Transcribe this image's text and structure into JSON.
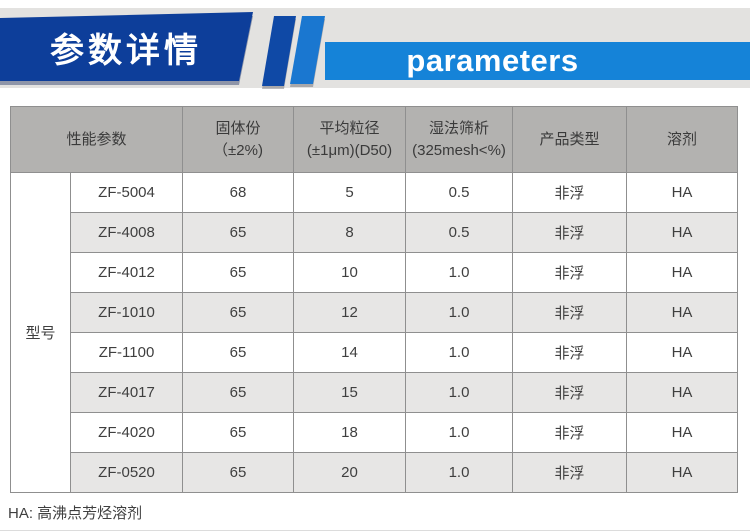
{
  "header": {
    "title_cn": "参数详情",
    "title_en": "parameters",
    "colors": {
      "banner_navy": "#0d3e9a",
      "stripe_navy": "#0f49a6",
      "stripe_blue": "#1a77d0",
      "bar_blue": "#1583d8",
      "strip_gray": "#e3e2e0"
    }
  },
  "table": {
    "row_group_label": "型号",
    "columns": [
      {
        "l1": "性能参数"
      },
      {
        "l1": "固体份",
        "l2": "（±2%)"
      },
      {
        "l1": "平均粒径",
        "l2": "(±1μm)(D50)"
      },
      {
        "l1": "湿法筛析",
        "l2": "(325mesh<%)"
      },
      {
        "l1": "产品类型"
      },
      {
        "l1": "溶剂"
      }
    ],
    "rows": [
      {
        "model": "ZF-5004",
        "solid": "68",
        "size": "5",
        "sieve": "0.5",
        "type": "非浮",
        "solvent": "HA"
      },
      {
        "model": "ZF-4008",
        "solid": "65",
        "size": "8",
        "sieve": "0.5",
        "type": "非浮",
        "solvent": "HA"
      },
      {
        "model": "ZF-4012",
        "solid": "65",
        "size": "10",
        "sieve": "1.0",
        "type": "非浮",
        "solvent": "HA"
      },
      {
        "model": "ZF-1010",
        "solid": "65",
        "size": "12",
        "sieve": "1.0",
        "type": "非浮",
        "solvent": "HA"
      },
      {
        "model": "ZF-1100",
        "solid": "65",
        "size": "14",
        "sieve": "1.0",
        "type": "非浮",
        "solvent": "HA"
      },
      {
        "model": "ZF-4017",
        "solid": "65",
        "size": "15",
        "sieve": "1.0",
        "type": "非浮",
        "solvent": "HA"
      },
      {
        "model": "ZF-4020",
        "solid": "65",
        "size": "18",
        "sieve": "1.0",
        "type": "非浮",
        "solvent": "HA"
      },
      {
        "model": "ZF-0520",
        "solid": "65",
        "size": "20",
        "sieve": "1.0",
        "type": "非浮",
        "solvent": "HA"
      }
    ]
  },
  "footer": {
    "note": "HA: 高沸点芳烃溶剂"
  }
}
